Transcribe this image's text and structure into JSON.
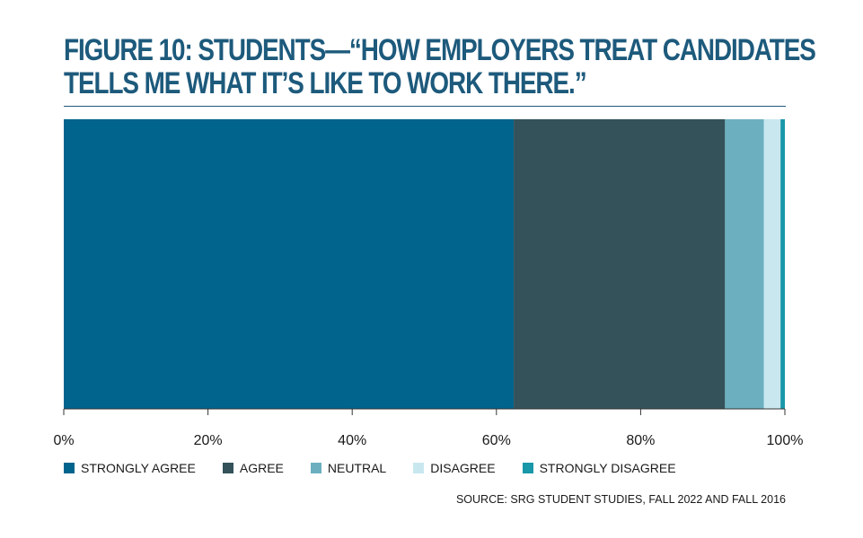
{
  "title_line1": "FIGURE 10: STUDENTS—“HOW EMPLOYERS TREAT CANDIDATES",
  "title_line2": "TELLS ME WHAT IT’S LIKE TO WORK THERE.”",
  "source": "SOURCE: SRG STUDENT STUDIES, FALL 2022 AND FALL 2016",
  "chart_data": {
    "type": "bar",
    "orientation": "horizontal",
    "stacked": true,
    "title": "FIGURE 10: STUDENTS—“HOW EMPLOYERS TREAT CANDIDATES TELLS ME WHAT IT’S LIKE TO WORK THERE.”",
    "xlabel": "",
    "ylabel": "",
    "xlim": [
      0,
      100
    ],
    "x_ticks": [
      "0%",
      "20%",
      "40%",
      "60%",
      "80%",
      "100%"
    ],
    "x_tick_values": [
      0,
      20,
      40,
      60,
      80,
      100
    ],
    "grid": false,
    "legend_position": "bottom-left",
    "series": [
      {
        "name": "STRONGLY AGREE",
        "value": 62.4,
        "color": "#00648c"
      },
      {
        "name": "AGREE",
        "value": 29.3,
        "color": "#335259"
      },
      {
        "name": "NEUTRAL",
        "value": 5.4,
        "color": "#6cb0c0"
      },
      {
        "name": "DISAGREE",
        "value": 2.3,
        "color": "#c9e7ef"
      },
      {
        "name": "STRONGLY DISAGREE",
        "value": 0.6,
        "color": "#1898a8"
      }
    ]
  }
}
